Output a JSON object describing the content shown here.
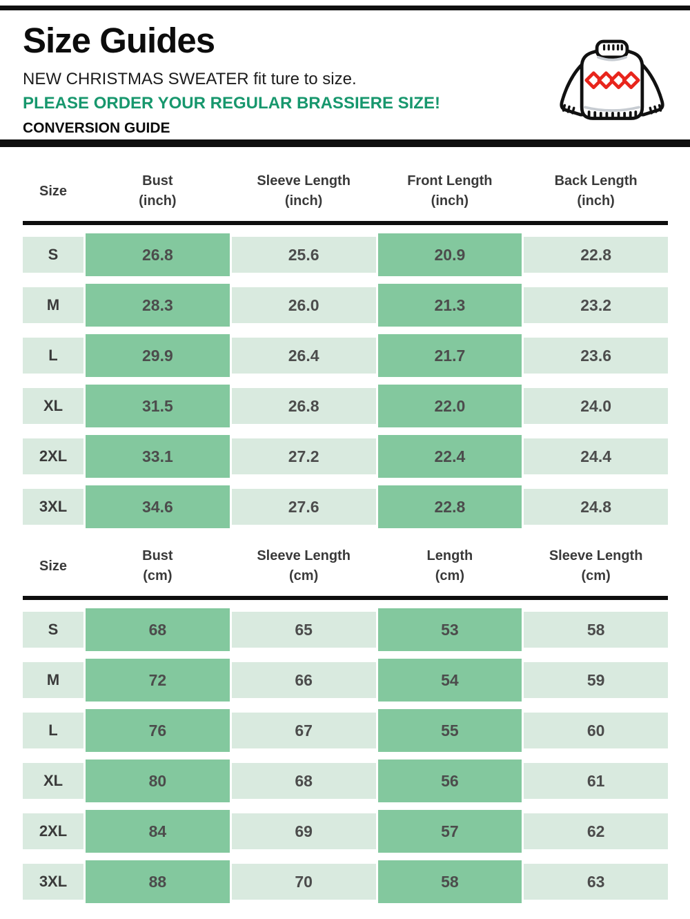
{
  "header": {
    "title": "Size Guides",
    "subtitle": "NEW CHRISTMAS SWEATER fit ture to size.",
    "notice": "PLEASE ORDER YOUR REGULAR BRASSIERE SIZE!",
    "conversion_label": "CONVERSION GUIDE",
    "icon": "christmas-sweater-icon"
  },
  "colors": {
    "accent_green_text": "#17976d",
    "cell_light_green": "#d9eadf",
    "cell_dark_green": "#83c89e",
    "value_text": "#4c4c4c",
    "header_text": "#3a3a3a",
    "rule_black": "#0e0e0e",
    "sweater_red": "#e8251c"
  },
  "tables": [
    {
      "name": "size-table-inch",
      "columns": [
        {
          "label": "Size",
          "unit": ""
        },
        {
          "label": "Bust",
          "unit": "(inch)"
        },
        {
          "label": "Sleeve Length",
          "unit": "(inch)"
        },
        {
          "label": "Front Length",
          "unit": "(inch)"
        },
        {
          "label": "Back Length",
          "unit": "(inch)"
        }
      ],
      "rows": [
        {
          "size": "S",
          "values": [
            "26.8",
            "25.6",
            "20.9",
            "22.8"
          ]
        },
        {
          "size": "M",
          "values": [
            "28.3",
            "26.0",
            "21.3",
            "23.2"
          ]
        },
        {
          "size": "L",
          "values": [
            "29.9",
            "26.4",
            "21.7",
            "23.6"
          ]
        },
        {
          "size": "XL",
          "values": [
            "31.5",
            "26.8",
            "22.0",
            "24.0"
          ]
        },
        {
          "size": "2XL",
          "values": [
            "33.1",
            "27.2",
            "22.4",
            "24.4"
          ]
        },
        {
          "size": "3XL",
          "values": [
            "34.6",
            "27.6",
            "22.8",
            "24.8"
          ]
        }
      ]
    },
    {
      "name": "size-table-cm",
      "columns": [
        {
          "label": "Size",
          "unit": ""
        },
        {
          "label": "Bust",
          "unit": "(cm)"
        },
        {
          "label": "Sleeve Length",
          "unit": "(cm)"
        },
        {
          "label": "Length",
          "unit": "(cm)"
        },
        {
          "label": "Sleeve Length",
          "unit": "(cm)"
        }
      ],
      "rows": [
        {
          "size": "S",
          "values": [
            "68",
            "65",
            "53",
            "58"
          ]
        },
        {
          "size": "M",
          "values": [
            "72",
            "66",
            "54",
            "59"
          ]
        },
        {
          "size": "L",
          "values": [
            "76",
            "67",
            "55",
            "60"
          ]
        },
        {
          "size": "XL",
          "values": [
            "80",
            "68",
            "56",
            "61"
          ]
        },
        {
          "size": "2XL",
          "values": [
            "84",
            "69",
            "57",
            "62"
          ]
        },
        {
          "size": "3XL",
          "values": [
            "88",
            "70",
            "58",
            "63"
          ]
        }
      ]
    }
  ]
}
